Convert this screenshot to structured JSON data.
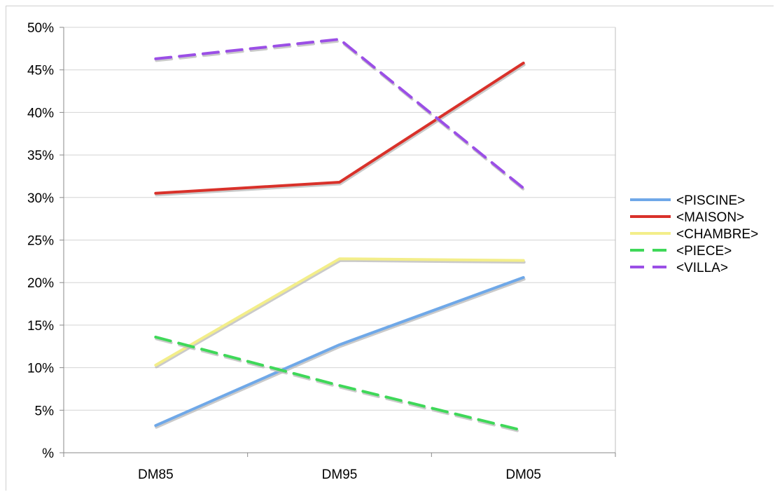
{
  "chart_data": {
    "type": "line",
    "title": "",
    "xlabel": "",
    "ylabel": "",
    "categories": [
      "DM85",
      "DM95",
      "DM05"
    ],
    "ylim": [
      0,
      50
    ],
    "y_ticks": [
      0,
      5,
      10,
      15,
      20,
      25,
      30,
      35,
      40,
      45,
      50
    ],
    "y_tick_labels": [
      "%",
      "5%",
      "10%",
      "15%",
      "20%",
      "25%",
      "30%",
      "35%",
      "40%",
      "45%",
      "50%"
    ],
    "grid": "horizontal",
    "legend_position": "right",
    "series": [
      {
        "name": "<PISCINE>",
        "values": [
          3.2,
          12.7,
          20.6
        ],
        "color": "#6fa8e8",
        "dash": "solid"
      },
      {
        "name": "<MAISON>",
        "values": [
          30.5,
          31.8,
          45.8
        ],
        "color": "#d9312a",
        "dash": "solid"
      },
      {
        "name": "<CHAMBRE>",
        "values": [
          10.3,
          22.8,
          22.6
        ],
        "color": "#f3ee8a",
        "dash": "solid"
      },
      {
        "name": "<PIECE>",
        "values": [
          13.6,
          7.9,
          2.6
        ],
        "color": "#3fd859",
        "dash": "dashed"
      },
      {
        "name": "<VILLA>",
        "values": [
          46.3,
          48.6,
          31.1
        ],
        "color": "#9b4fe6",
        "dash": "dashed"
      }
    ]
  }
}
